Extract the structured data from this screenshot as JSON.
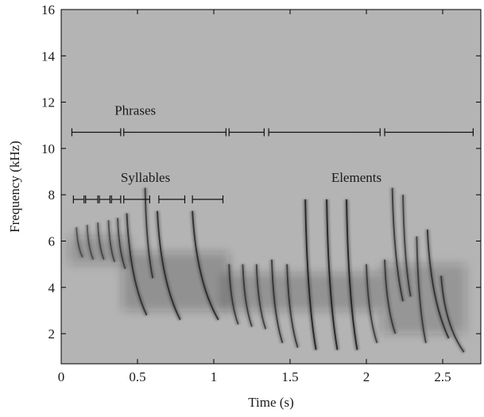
{
  "chart_data": {
    "type": "heatmap",
    "title": "",
    "xlabel": "Time (s)",
    "ylabel": "Frequency (kHz)",
    "xlim": [
      0,
      2.75
    ],
    "ylim": [
      0.7,
      16
    ],
    "x_ticks": [
      0,
      0.5,
      1,
      1.5,
      2,
      2.5
    ],
    "x_tick_labels": [
      "0",
      "0.5",
      "1",
      "1.5",
      "2",
      "2.5"
    ],
    "y_ticks": [
      2,
      4,
      6,
      8,
      10,
      12,
      14,
      16
    ],
    "y_tick_labels": [
      "2",
      "4",
      "6",
      "8",
      "10",
      "12",
      "14",
      "16"
    ],
    "colormap": "grayscale",
    "background_color": "#b4b4b4",
    "ink_color": "#202020",
    "annotations": [
      {
        "label": "Phrases",
        "label_pos": [
          0.35,
          11.45
        ],
        "y": 10.7,
        "segments": [
          [
            0.07,
            0.39
          ],
          [
            0.41,
            1.08
          ],
          [
            1.1,
            1.33
          ],
          [
            1.36,
            2.09
          ],
          [
            2.12,
            2.7
          ]
        ]
      },
      {
        "label": "Syllables",
        "label_pos": [
          0.39,
          8.55
        ],
        "y": 7.8,
        "segments": [
          [
            0.08,
            0.15
          ],
          [
            0.16,
            0.24
          ],
          [
            0.25,
            0.32
          ],
          [
            0.33,
            0.39
          ],
          [
            0.41,
            0.58
          ],
          [
            0.64,
            0.81
          ],
          [
            0.86,
            1.06
          ]
        ]
      },
      {
        "label": "Elements",
        "label_pos": [
          1.77,
          8.55
        ],
        "segments": []
      }
    ],
    "syllable_traces": [
      {
        "t": 0.1,
        "f_high": 6.6,
        "f_low": 5.3,
        "dur": 0.04,
        "intensity": 0.55
      },
      {
        "t": 0.17,
        "f_high": 6.7,
        "f_low": 5.2,
        "dur": 0.04,
        "intensity": 0.55
      },
      {
        "t": 0.24,
        "f_high": 6.8,
        "f_low": 5.2,
        "dur": 0.04,
        "intensity": 0.6
      },
      {
        "t": 0.31,
        "f_high": 6.9,
        "f_low": 5.1,
        "dur": 0.04,
        "intensity": 0.6
      },
      {
        "t": 0.37,
        "f_high": 7.0,
        "f_low": 4.8,
        "dur": 0.05,
        "intensity": 0.65
      },
      {
        "t": 0.43,
        "f_high": 7.2,
        "f_low": 2.8,
        "dur": 0.13,
        "intensity": 0.8
      },
      {
        "t": 0.55,
        "f_high": 8.3,
        "f_low": 4.4,
        "dur": 0.05,
        "intensity": 0.75
      },
      {
        "t": 0.63,
        "f_high": 7.3,
        "f_low": 2.6,
        "dur": 0.15,
        "intensity": 0.85
      },
      {
        "t": 0.86,
        "f_high": 7.3,
        "f_low": 2.6,
        "dur": 0.17,
        "intensity": 0.85
      },
      {
        "t": 1.1,
        "f_high": 5.0,
        "f_low": 2.4,
        "dur": 0.06,
        "intensity": 0.7
      },
      {
        "t": 1.19,
        "f_high": 5.0,
        "f_low": 2.3,
        "dur": 0.06,
        "intensity": 0.7
      },
      {
        "t": 1.28,
        "f_high": 5.0,
        "f_low": 2.2,
        "dur": 0.06,
        "intensity": 0.7
      },
      {
        "t": 1.38,
        "f_high": 5.2,
        "f_low": 1.6,
        "dur": 0.07,
        "intensity": 0.75
      },
      {
        "t": 1.48,
        "f_high": 5.0,
        "f_low": 1.4,
        "dur": 0.07,
        "intensity": 0.75
      },
      {
        "t": 1.6,
        "f_high": 7.8,
        "f_low": 1.3,
        "dur": 0.07,
        "intensity": 0.95
      },
      {
        "t": 1.74,
        "f_high": 7.8,
        "f_low": 1.3,
        "dur": 0.07,
        "intensity": 0.95
      },
      {
        "t": 1.87,
        "f_high": 7.8,
        "f_low": 1.3,
        "dur": 0.07,
        "intensity": 0.95
      },
      {
        "t": 2.0,
        "f_high": 5.0,
        "f_low": 1.6,
        "dur": 0.07,
        "intensity": 0.7
      },
      {
        "t": 2.12,
        "f_high": 5.2,
        "f_low": 2.0,
        "dur": 0.07,
        "intensity": 0.7
      },
      {
        "t": 2.17,
        "f_high": 8.3,
        "f_low": 3.4,
        "dur": 0.07,
        "intensity": 0.75
      },
      {
        "t": 2.24,
        "f_high": 8.0,
        "f_low": 3.6,
        "dur": 0.05,
        "intensity": 0.7
      },
      {
        "t": 2.33,
        "f_high": 6.2,
        "f_low": 1.6,
        "dur": 0.06,
        "intensity": 0.7
      },
      {
        "t": 2.4,
        "f_high": 6.5,
        "f_low": 1.8,
        "dur": 0.14,
        "intensity": 0.8
      },
      {
        "t": 2.49,
        "f_high": 4.5,
        "f_low": 1.2,
        "dur": 0.15,
        "intensity": 0.75
      }
    ],
    "energy_bands": [
      {
        "t0": 0.05,
        "t1": 0.45,
        "f0": 5.0,
        "f1": 6.2,
        "intensity": 0.35
      },
      {
        "t0": 0.4,
        "t1": 1.1,
        "f0": 3.0,
        "f1": 5.5,
        "intensity": 0.4
      },
      {
        "t0": 1.05,
        "t1": 2.1,
        "f0": 3.0,
        "f1": 4.6,
        "intensity": 0.38
      },
      {
        "t0": 2.1,
        "t1": 2.65,
        "f0": 2.0,
        "f1": 5.0,
        "intensity": 0.35
      }
    ]
  }
}
